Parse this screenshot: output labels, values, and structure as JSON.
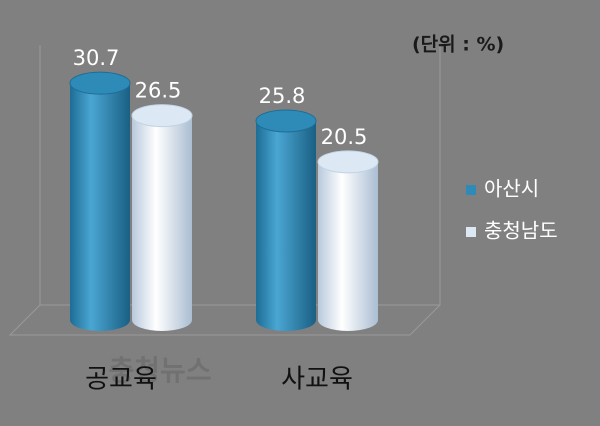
{
  "chart_data": {
    "type": "bar",
    "unit_note": "(단위 : %)",
    "watermark": "충청뉴스",
    "categories": [
      "공교육",
      "사교육"
    ],
    "series": [
      {
        "name": "아산시",
        "color": "#2e8bb8",
        "values": [
          30.7,
          25.8
        ]
      },
      {
        "name": "충청남도",
        "color": "#dce9f5",
        "values": [
          26.5,
          20.5
        ]
      }
    ],
    "ylim": [
      0,
      35
    ],
    "legend": "right"
  }
}
